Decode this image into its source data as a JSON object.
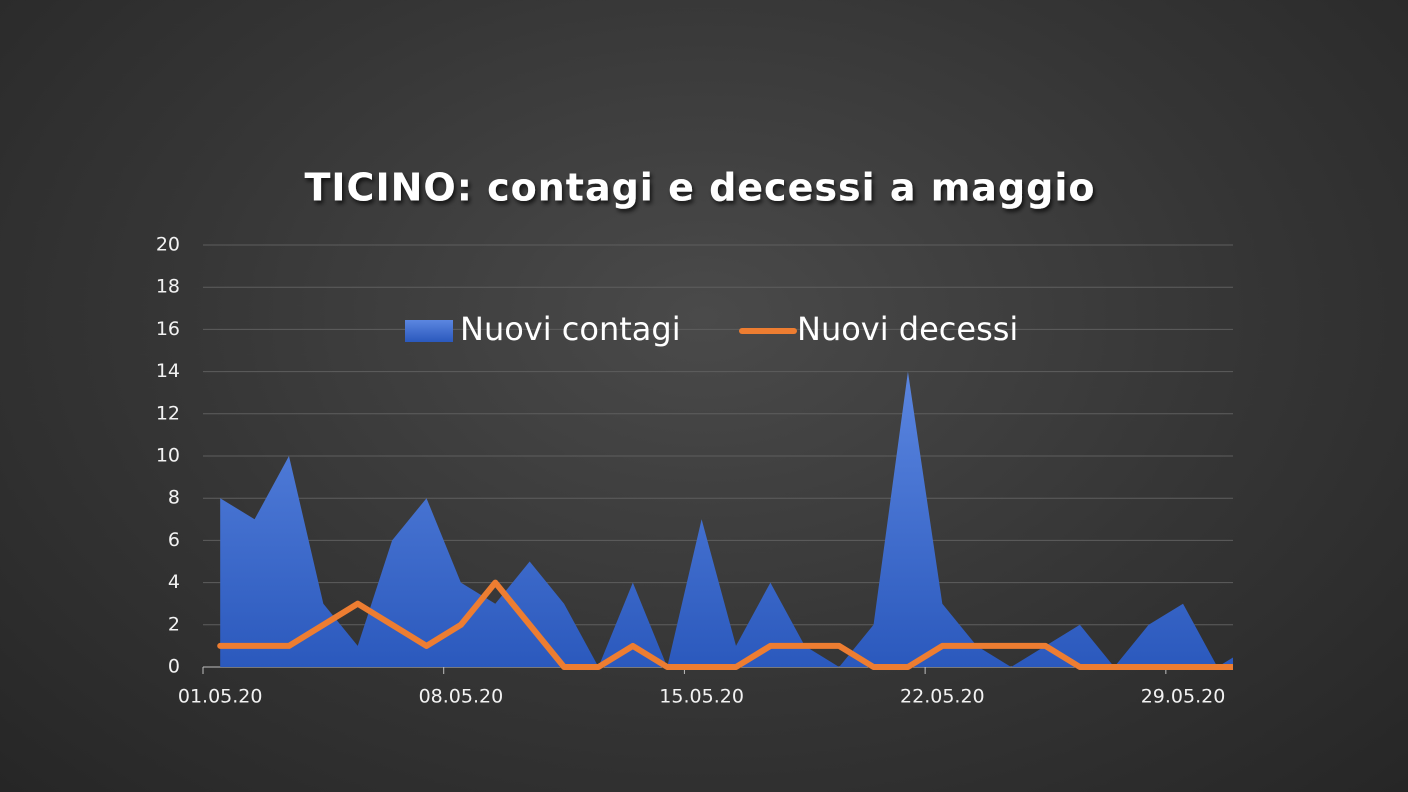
{
  "chart_data": {
    "type": "line",
    "title": "TICINO: contagi e decessi a maggio",
    "categories": [
      "01.05.20",
      null,
      null,
      null,
      null,
      null,
      null,
      "08.05.20",
      null,
      null,
      null,
      null,
      null,
      null,
      "15.05.20",
      null,
      null,
      null,
      null,
      null,
      null,
      "22.05.20",
      null,
      null,
      null,
      null,
      null,
      null,
      "29.05.20",
      null,
      null
    ],
    "series": [
      {
        "name": "Nuovi contagi",
        "type": "area",
        "color": "#3f6fd6",
        "values": [
          8,
          7,
          10,
          3,
          1,
          6,
          8,
          4,
          3,
          5,
          3,
          0,
          4,
          0,
          7,
          1,
          4,
          1,
          0,
          2,
          14,
          3,
          1,
          0,
          1,
          2,
          0,
          2,
          3,
          0,
          1
        ]
      },
      {
        "name": "Nuovi decessi",
        "type": "line",
        "color": "#ed7d31",
        "values": [
          1,
          1,
          1,
          2,
          3,
          2,
          1,
          2,
          4,
          2,
          0,
          0,
          1,
          0,
          0,
          0,
          1,
          1,
          1,
          0,
          0,
          1,
          1,
          1,
          1,
          0,
          0,
          0,
          0,
          0,
          0
        ]
      }
    ],
    "ylim": [
      0,
      20
    ],
    "yticks": [
      0,
      2,
      4,
      6,
      8,
      10,
      12,
      14,
      16,
      18,
      20
    ],
    "grid": true,
    "legend": "top"
  }
}
